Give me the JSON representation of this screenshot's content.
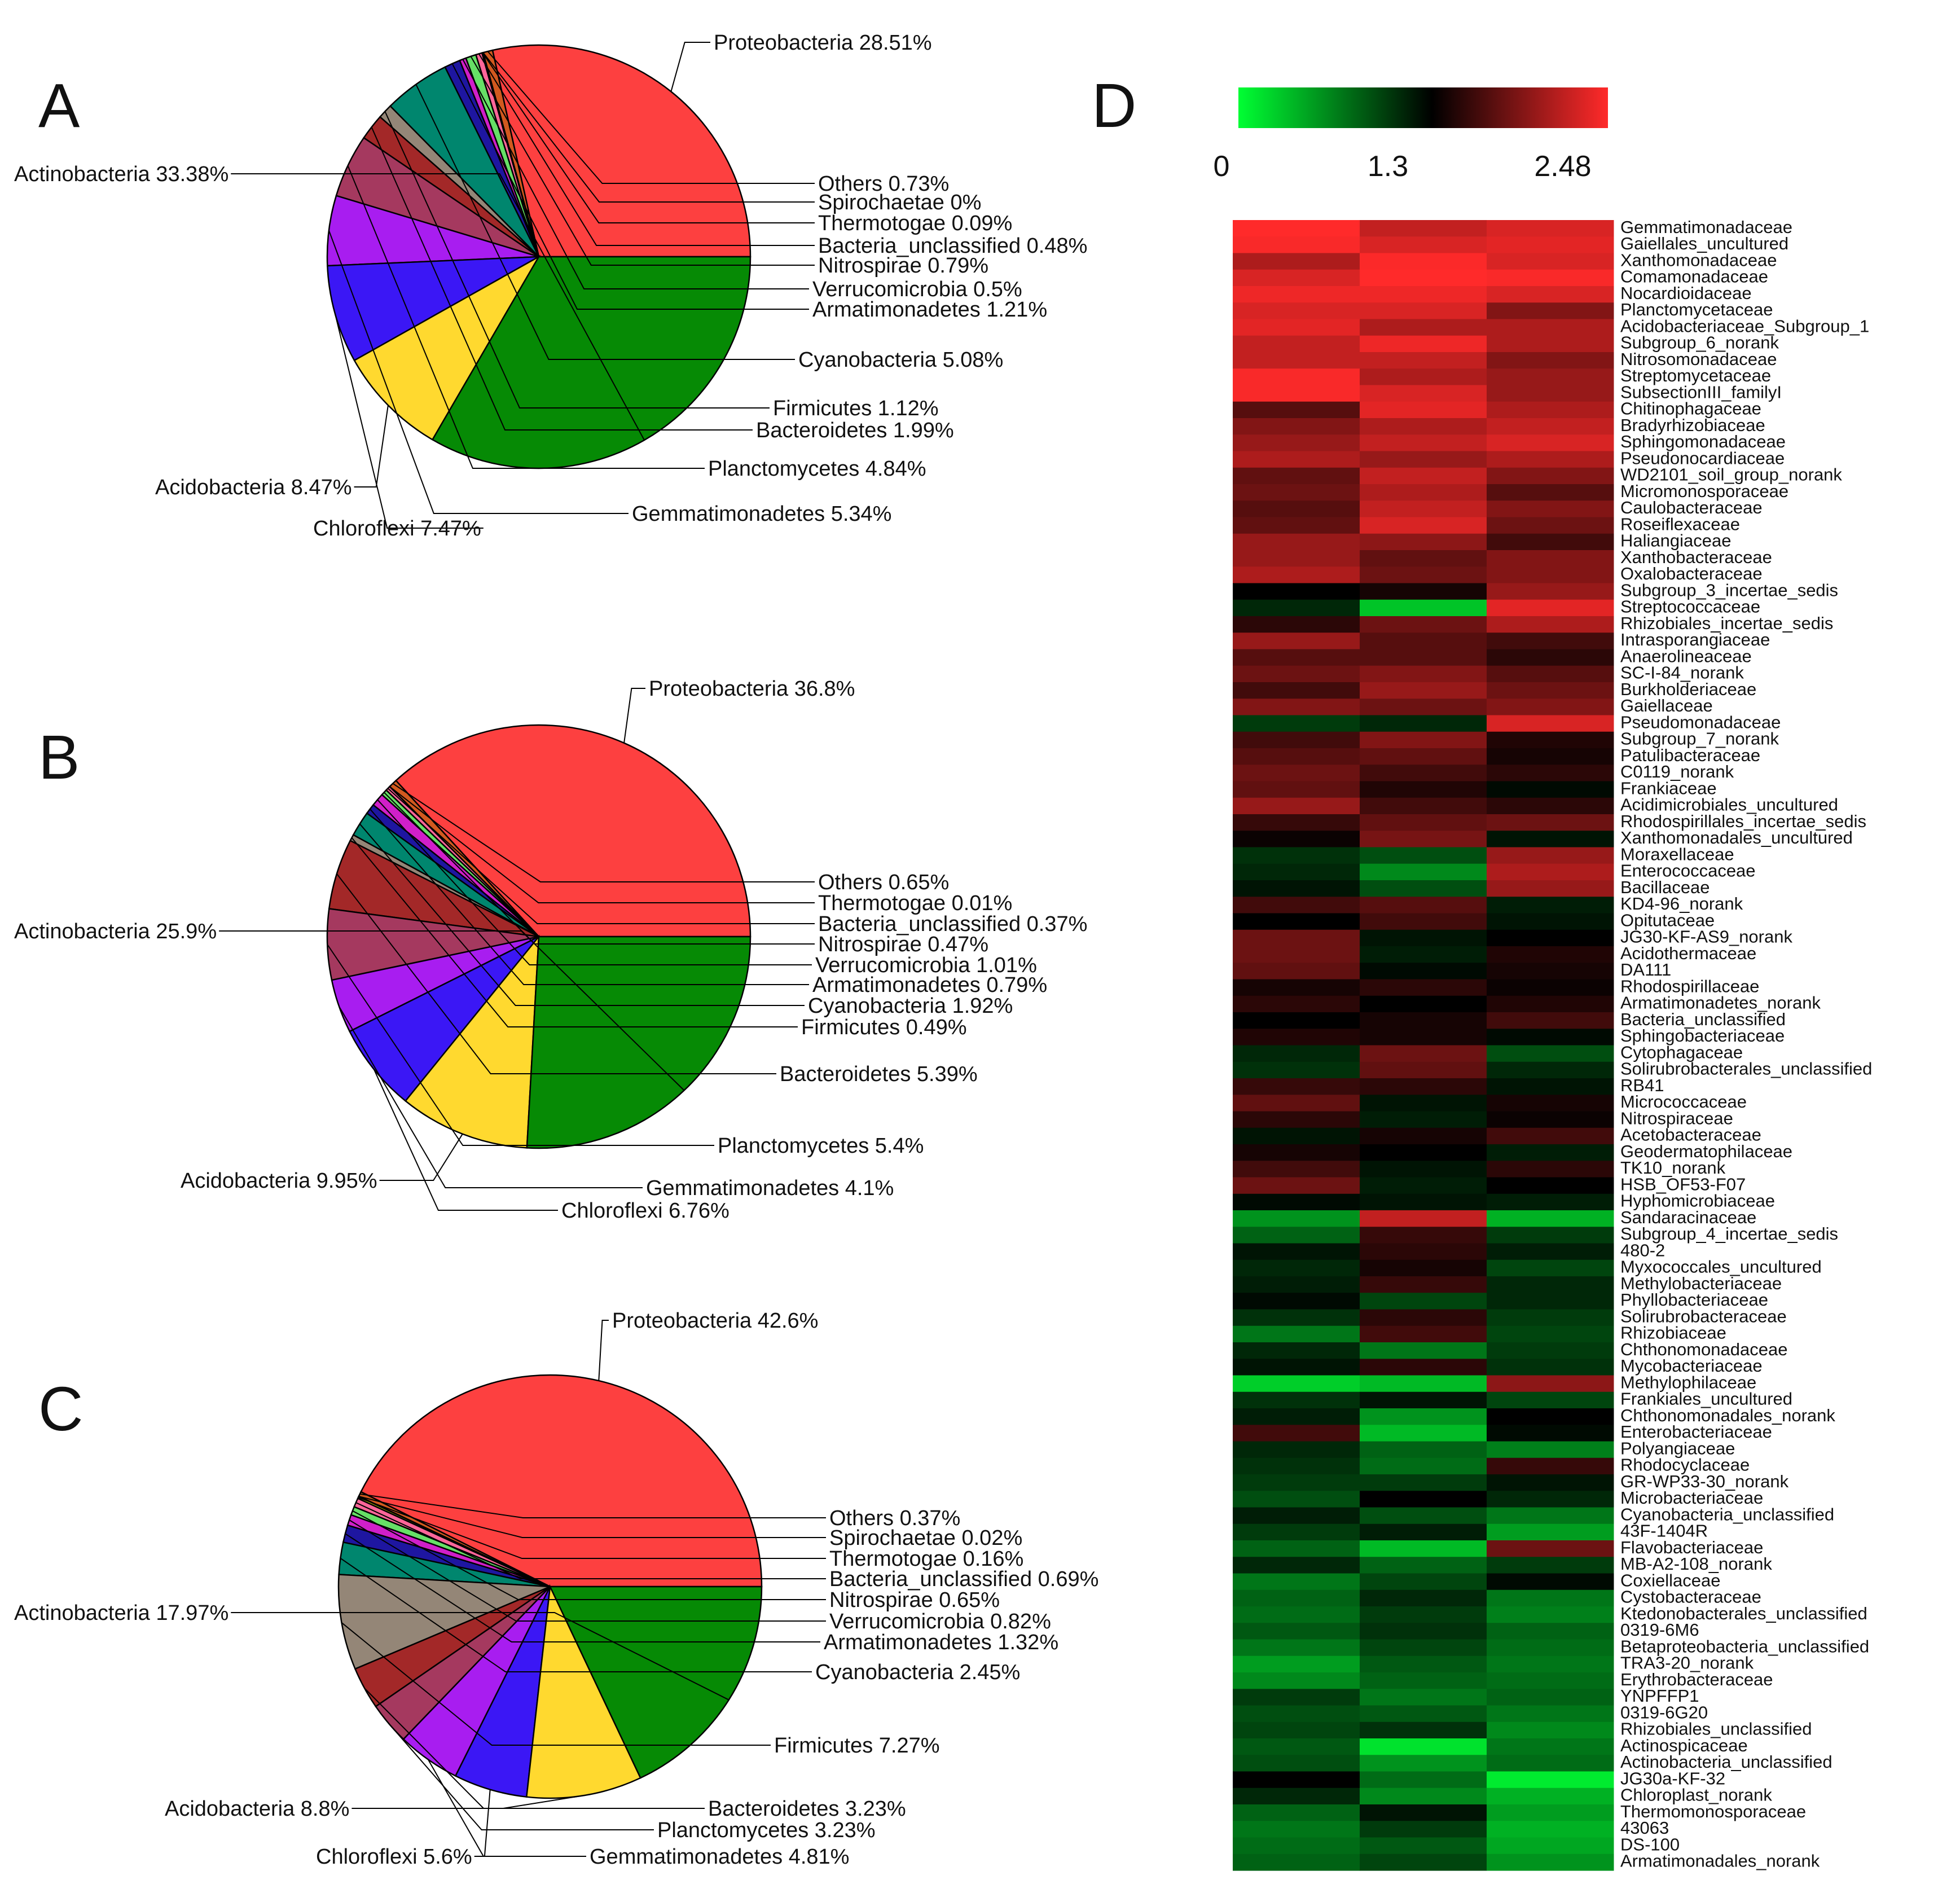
{
  "chart_data": [
    {
      "type": "pie",
      "panel": "A",
      "slices": [
        {
          "label": "Proteobacteria 28.51%",
          "value": 28.51,
          "color": "#fd4040"
        },
        {
          "label": "Others 0.73%",
          "value": 0.73,
          "color": "#d2591f"
        },
        {
          "label": "Spirochaetae 0%",
          "value": 0.0,
          "color": "#ff7f00"
        },
        {
          "label": "Thermotogae 0.09%",
          "value": 0.09,
          "color": "#cccc00"
        },
        {
          "label": "Bacteria_unclassified 0.48%",
          "value": 0.48,
          "color": "#ff6699"
        },
        {
          "label": "Nitrospirae 0.79%",
          "value": 0.79,
          "color": "#66e066"
        },
        {
          "label": "Verrucomicrobia 0.5%",
          "value": 0.5,
          "color": "#d01fc9"
        },
        {
          "label": "Armatimonadetes 1.21%",
          "value": 1.21,
          "color": "#1e16a0"
        },
        {
          "label": "Cyanobacteria 5.08%",
          "value": 5.08,
          "color": "#00866e"
        },
        {
          "label": "Firmicutes 1.12%",
          "value": 1.12,
          "color": "#948677"
        },
        {
          "label": "Bacteroidetes 1.99%",
          "value": 1.99,
          "color": "#a32828"
        },
        {
          "label": "Planctomycetes 4.84%",
          "value": 4.84,
          "color": "#a5395f"
        },
        {
          "label": "Gemmatimonadetes 5.34%",
          "value": 5.34,
          "color": "#a81df0"
        },
        {
          "label": "Chloroflexi 7.47%",
          "value": 7.47,
          "color": "#3b17f5"
        },
        {
          "label": "Acidobacteria 8.47%",
          "value": 8.47,
          "color": "#ffd92f"
        },
        {
          "label": "Actinobacteria 33.38%",
          "value": 33.38,
          "color": "#068a05"
        }
      ]
    },
    {
      "type": "pie",
      "panel": "B",
      "slices": [
        {
          "label": "Proteobacteria 36.8%",
          "value": 36.8,
          "color": "#fd4040"
        },
        {
          "label": "Others 0.65%",
          "value": 0.65,
          "color": "#d2591f"
        },
        {
          "label": "Thermotogae 0.01%",
          "value": 0.01,
          "color": "#cccc00"
        },
        {
          "label": "Bacteria_unclassified 0.37%",
          "value": 0.37,
          "color": "#ff6699"
        },
        {
          "label": "Nitrospirae 0.47%",
          "value": 0.47,
          "color": "#66e066"
        },
        {
          "label": "Verrucomicrobia 1.01%",
          "value": 1.01,
          "color": "#d01fc9"
        },
        {
          "label": "Armatimonadetes 0.79%",
          "value": 0.79,
          "color": "#1e16a0"
        },
        {
          "label": "Cyanobacteria 1.92%",
          "value": 1.92,
          "color": "#00866e"
        },
        {
          "label": "Firmicutes 0.49%",
          "value": 0.49,
          "color": "#948677"
        },
        {
          "label": "Bacteroidetes 5.39%",
          "value": 5.39,
          "color": "#a32828"
        },
        {
          "label": "Planctomycetes 5.4%",
          "value": 5.4,
          "color": "#a5395f"
        },
        {
          "label": "Gemmatimonadetes 4.1%",
          "value": 4.1,
          "color": "#a81df0"
        },
        {
          "label": "Chloroflexi 6.76%",
          "value": 6.76,
          "color": "#3b17f5"
        },
        {
          "label": "Acidobacteria 9.95%",
          "value": 9.95,
          "color": "#ffd92f"
        },
        {
          "label": "Actinobacteria 25.9%",
          "value": 25.9,
          "color": "#068a05"
        }
      ]
    },
    {
      "type": "pie",
      "panel": "C",
      "slices": [
        {
          "label": "Proteobacteria 42.6%",
          "value": 42.6,
          "color": "#fd4040"
        },
        {
          "label": "Others 0.37%",
          "value": 0.37,
          "color": "#d2591f"
        },
        {
          "label": "Spirochaetae 0.02%",
          "value": 0.02,
          "color": "#ff7f00"
        },
        {
          "label": "Thermotogae 0.16%",
          "value": 0.16,
          "color": "#cccc00"
        },
        {
          "label": "Bacteria_unclassified 0.69%",
          "value": 0.69,
          "color": "#ff6699"
        },
        {
          "label": "Nitrospirae 0.65%",
          "value": 0.65,
          "color": "#66e066"
        },
        {
          "label": "Verrucomicrobia 0.82%",
          "value": 0.82,
          "color": "#d01fc9"
        },
        {
          "label": "Armatimonadetes 1.32%",
          "value": 1.32,
          "color": "#1e16a0"
        },
        {
          "label": "Cyanobacteria 2.45%",
          "value": 2.45,
          "color": "#00866e"
        },
        {
          "label": "Firmicutes 7.27%",
          "value": 7.27,
          "color": "#948677"
        },
        {
          "label": "Bacteroidetes 3.23%",
          "value": 3.23,
          "color": "#a32828"
        },
        {
          "label": "Planctomycetes 3.23%",
          "value": 3.23,
          "color": "#a5395f"
        },
        {
          "label": "Gemmatimonadetes 4.81%",
          "value": 4.81,
          "color": "#a81df0"
        },
        {
          "label": "Chloroflexi 5.6%",
          "value": 5.6,
          "color": "#3b17f5"
        },
        {
          "label": "Acidobacteria 8.8%",
          "value": 8.8,
          "color": "#ffd92f"
        },
        {
          "label": "Actinobacteria 17.97%",
          "value": 17.97,
          "color": "#068a05"
        }
      ]
    },
    {
      "type": "heatmap",
      "panel": "D",
      "colorbar": {
        "min": 0,
        "mid": 1.3,
        "max": 2.48,
        "tick_labels": [
          "0",
          "1.3",
          "2.48"
        ],
        "colors": [
          "#00ff33",
          "#000000",
          "#ff2a2a"
        ]
      },
      "columns": 3,
      "rows": [
        "Gemmatimonadaceae",
        "Gaiellales_uncultured",
        "Xanthomonadaceae",
        "Comamonadaceae",
        "Nocardioidaceae",
        "Planctomycetaceae",
        "Acidobacteriaceae_Subgroup_1",
        "Subgroup_6_norank",
        "Nitrosomonadaceae",
        "Streptomycetaceae",
        "SubsectionIII_familyI",
        "Chitinophagaceae",
        "Bradyrhizobiaceae",
        "Sphingomonadaceae",
        "Pseudonocardiaceae",
        "WD2101_soil_group_norank",
        "Micromonosporaceae",
        "Caulobacteraceae",
        "Roseiflexaceae",
        "Haliangiaceae",
        "Xanthobacteraceae",
        "Oxalobacteraceae",
        "Subgroup_3_incertae_sedis",
        "Streptococcaceae",
        "Rhizobiales_incertae_sedis",
        "Intrasporangiaceae",
        "Anaerolineaceae",
        "SC-I-84_norank",
        "Burkholderiaceae",
        "Gaiellaceae",
        "Pseudomonadaceae",
        "Subgroup_7_norank",
        "Patulibacteraceae",
        "C0119_norank",
        "Frankiaceae",
        "Acidimicrobiales_uncultured",
        "Rhodospirillales_incertae_sedis",
        "Xanthomonadales_uncultured",
        "Moraxellaceae",
        "Enterococcaceae",
        "Bacillaceae",
        "KD4-96_norank",
        "Opitutaceae",
        "JG30-KF-AS9_norank",
        "Acidothermaceae",
        "DA111",
        "Rhodospirillaceae",
        "Armatimonadetes_norank",
        "Bacteria_unclassified",
        "Sphingobacteriaceae",
        "Cytophagaceae",
        "Solirubrobacterales_unclassified",
        "RB41",
        "Micrococcaceae",
        "Nitrospiraceae",
        "Acetobacteraceae",
        "Geodermatophilaceae",
        "TK10_norank",
        "HSB_OF53-F07",
        "Hyphomicrobiaceae",
        "Sandaracinaceae",
        "Subgroup_4_incertae_sedis",
        "480-2",
        "Myxococcales_uncultured",
        "Methylobacteriaceae",
        "Phyllobacteriaceae",
        "Solirubrobacteraceae",
        "Rhizobiaceae",
        "Chthonomonadaceae",
        "Mycobacteriaceae",
        "Methylophilaceae",
        "Frankiales_uncultured",
        "Chthonomonadales_norank",
        "Enterobacteriaceae",
        "Polyangiaceae",
        "Rhodocyclaceae",
        "GR-WP33-30_norank",
        "Microbacteriaceae",
        "Cyanobacteria_unclassified",
        "43F-1404R",
        "Flavobacteriaceae",
        "MB-A2-108_norank",
        "Coxiellaceae",
        "Cystobacteraceae",
        "Ktedonobacterales_unclassified",
        "0319-6M6",
        "Betaproteobacteria_unclassified",
        "TRA3-20_norank",
        "Erythrobacteraceae",
        "YNPFFP1",
        "0319-6G20",
        "Rhizobiales_unclassified",
        "Actinospicaceae",
        "Actinobacteria_unclassified",
        "JG30a-KF-32",
        "Chloroplast_norank",
        "Thermomonosporaceae",
        "43063",
        "DS-100",
        "Armatimonadales_norank"
      ],
      "values": [
        [
          2.48,
          2.2,
          2.3
        ],
        [
          2.45,
          2.3,
          2.35
        ],
        [
          2.1,
          2.46,
          2.3
        ],
        [
          2.3,
          2.48,
          2.45
        ],
        [
          2.4,
          2.4,
          2.3
        ],
        [
          2.3,
          2.3,
          1.9
        ],
        [
          2.35,
          2.1,
          2.1
        ],
        [
          2.2,
          2.4,
          2.1
        ],
        [
          2.2,
          2.2,
          1.9
        ],
        [
          2.45,
          2.1,
          2.0
        ],
        [
          2.45,
          2.3,
          2.0
        ],
        [
          1.7,
          2.35,
          2.1
        ],
        [
          1.9,
          2.1,
          2.2
        ],
        [
          2.0,
          2.2,
          2.3
        ],
        [
          2.1,
          2.0,
          2.1
        ],
        [
          1.75,
          2.2,
          1.9
        ],
        [
          1.8,
          2.1,
          1.7
        ],
        [
          1.7,
          2.2,
          1.9
        ],
        [
          1.75,
          2.3,
          1.8
        ],
        [
          2.0,
          1.95,
          1.6
        ],
        [
          2.0,
          1.75,
          1.9
        ],
        [
          2.1,
          1.8,
          1.9
        ],
        [
          1.3,
          1.4,
          2.0
        ],
        [
          1.1,
          0.3,
          2.35
        ],
        [
          1.5,
          1.8,
          2.1
        ],
        [
          2.0,
          1.7,
          1.6
        ],
        [
          1.7,
          1.7,
          1.5
        ],
        [
          1.8,
          1.9,
          1.7
        ],
        [
          1.6,
          2.0,
          1.8
        ],
        [
          1.9,
          1.8,
          1.9
        ],
        [
          1.0,
          1.1,
          2.3
        ],
        [
          1.6,
          1.9,
          1.45
        ],
        [
          1.7,
          1.75,
          1.4
        ],
        [
          1.8,
          1.6,
          1.5
        ],
        [
          1.75,
          1.45,
          1.25
        ],
        [
          2.0,
          1.6,
          1.5
        ],
        [
          1.55,
          1.75,
          1.8
        ],
        [
          1.35,
          1.85,
          1.2
        ],
        [
          1.05,
          0.9,
          2.0
        ],
        [
          1.1,
          0.6,
          2.1
        ],
        [
          1.2,
          0.9,
          2.0
        ],
        [
          1.6,
          1.7,
          1.15
        ],
        [
          1.3,
          1.6,
          1.2
        ],
        [
          1.8,
          1.2,
          1.3
        ],
        [
          1.8,
          1.15,
          1.45
        ],
        [
          1.75,
          1.25,
          1.4
        ],
        [
          1.4,
          1.5,
          1.35
        ],
        [
          1.5,
          1.3,
          1.45
        ],
        [
          1.3,
          1.4,
          1.6
        ],
        [
          1.45,
          1.4,
          1.25
        ],
        [
          1.1,
          1.8,
          0.9
        ],
        [
          1.05,
          1.75,
          1.1
        ],
        [
          1.55,
          1.5,
          1.2
        ],
        [
          1.75,
          1.2,
          1.4
        ],
        [
          1.5,
          1.15,
          1.35
        ],
        [
          1.2,
          1.4,
          1.6
        ],
        [
          1.4,
          1.3,
          1.15
        ],
        [
          1.6,
          1.2,
          1.5
        ],
        [
          1.8,
          1.15,
          1.3
        ],
        [
          1.25,
          1.2,
          1.15
        ],
        [
          0.55,
          2.2,
          0.4
        ],
        [
          0.8,
          1.55,
          1.0
        ],
        [
          1.2,
          1.5,
          1.15
        ],
        [
          1.1,
          1.4,
          0.95
        ],
        [
          1.15,
          1.55,
          1.1
        ],
        [
          1.25,
          0.95,
          1.1
        ],
        [
          1.05,
          1.5,
          1.0
        ],
        [
          0.7,
          1.6,
          0.95
        ],
        [
          1.1,
          0.7,
          1.0
        ],
        [
          1.2,
          1.5,
          1.05
        ],
        [
          0.25,
          0.35,
          1.95
        ],
        [
          1.05,
          1.2,
          0.95
        ],
        [
          1.15,
          0.55,
          1.3
        ],
        [
          1.6,
          0.35,
          1.25
        ],
        [
          1.1,
          0.8,
          0.65
        ],
        [
          1.05,
          0.75,
          1.55
        ],
        [
          1.0,
          1.0,
          1.2
        ],
        [
          0.9,
          1.3,
          1.1
        ],
        [
          1.15,
          0.9,
          0.7
        ],
        [
          1.0,
          1.15,
          0.5
        ],
        [
          0.8,
          0.35,
          1.8
        ],
        [
          1.1,
          0.8,
          1.0
        ],
        [
          0.7,
          0.95,
          1.25
        ],
        [
          0.8,
          1.1,
          0.7
        ],
        [
          0.75,
          1.0,
          0.65
        ],
        [
          0.85,
          1.05,
          0.8
        ],
        [
          0.7,
          0.95,
          0.75
        ],
        [
          0.5,
          0.85,
          0.7
        ],
        [
          0.6,
          0.8,
          0.75
        ],
        [
          1.0,
          0.7,
          0.8
        ],
        [
          0.9,
          0.85,
          0.7
        ],
        [
          0.95,
          1.05,
          0.6
        ],
        [
          0.85,
          0.15,
          0.7
        ],
        [
          0.9,
          0.55,
          0.75
        ],
        [
          1.3,
          0.75,
          0.1
        ],
        [
          1.1,
          0.6,
          0.4
        ],
        [
          0.8,
          1.2,
          0.5
        ],
        [
          0.7,
          1.0,
          0.4
        ],
        [
          0.75,
          0.85,
          0.45
        ],
        [
          0.8,
          0.95,
          0.55
        ]
      ]
    }
  ],
  "panels": {
    "a": "A",
    "b": "B",
    "c": "C",
    "d": "D"
  }
}
